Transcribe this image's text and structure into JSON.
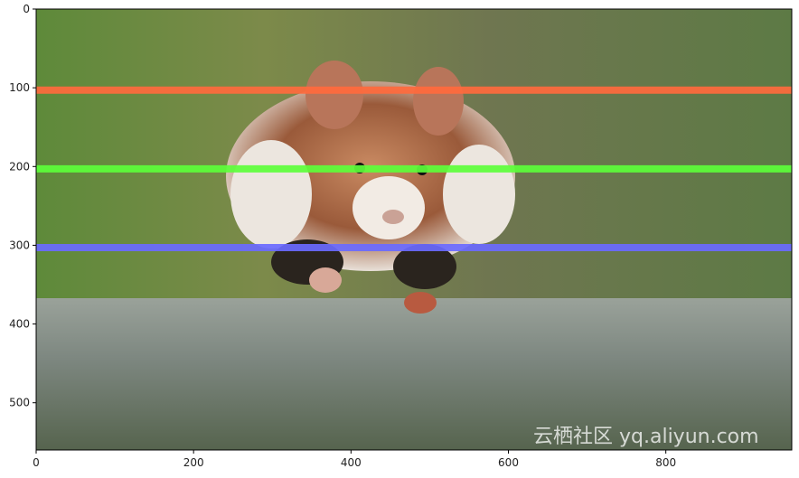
{
  "chart_data": {
    "type": "image",
    "xlim": [
      0,
      960
    ],
    "ylim": [
      560,
      0
    ],
    "x_ticks": [
      "0",
      "200",
      "400",
      "600",
      "800"
    ],
    "y_ticks": [
      "0",
      "100",
      "200",
      "300",
      "400",
      "500"
    ],
    "grid": false,
    "horizontal_lines": [
      {
        "y": 103,
        "color": "#ff6a3d"
      },
      {
        "y": 203,
        "color": "#5cff3a"
      },
      {
        "y": 303,
        "color": "#6a6aff"
      }
    ],
    "image_subject": "hamster running on stone ledge with grass background"
  },
  "watermark": "云栖社区 yq.aliyun.com"
}
